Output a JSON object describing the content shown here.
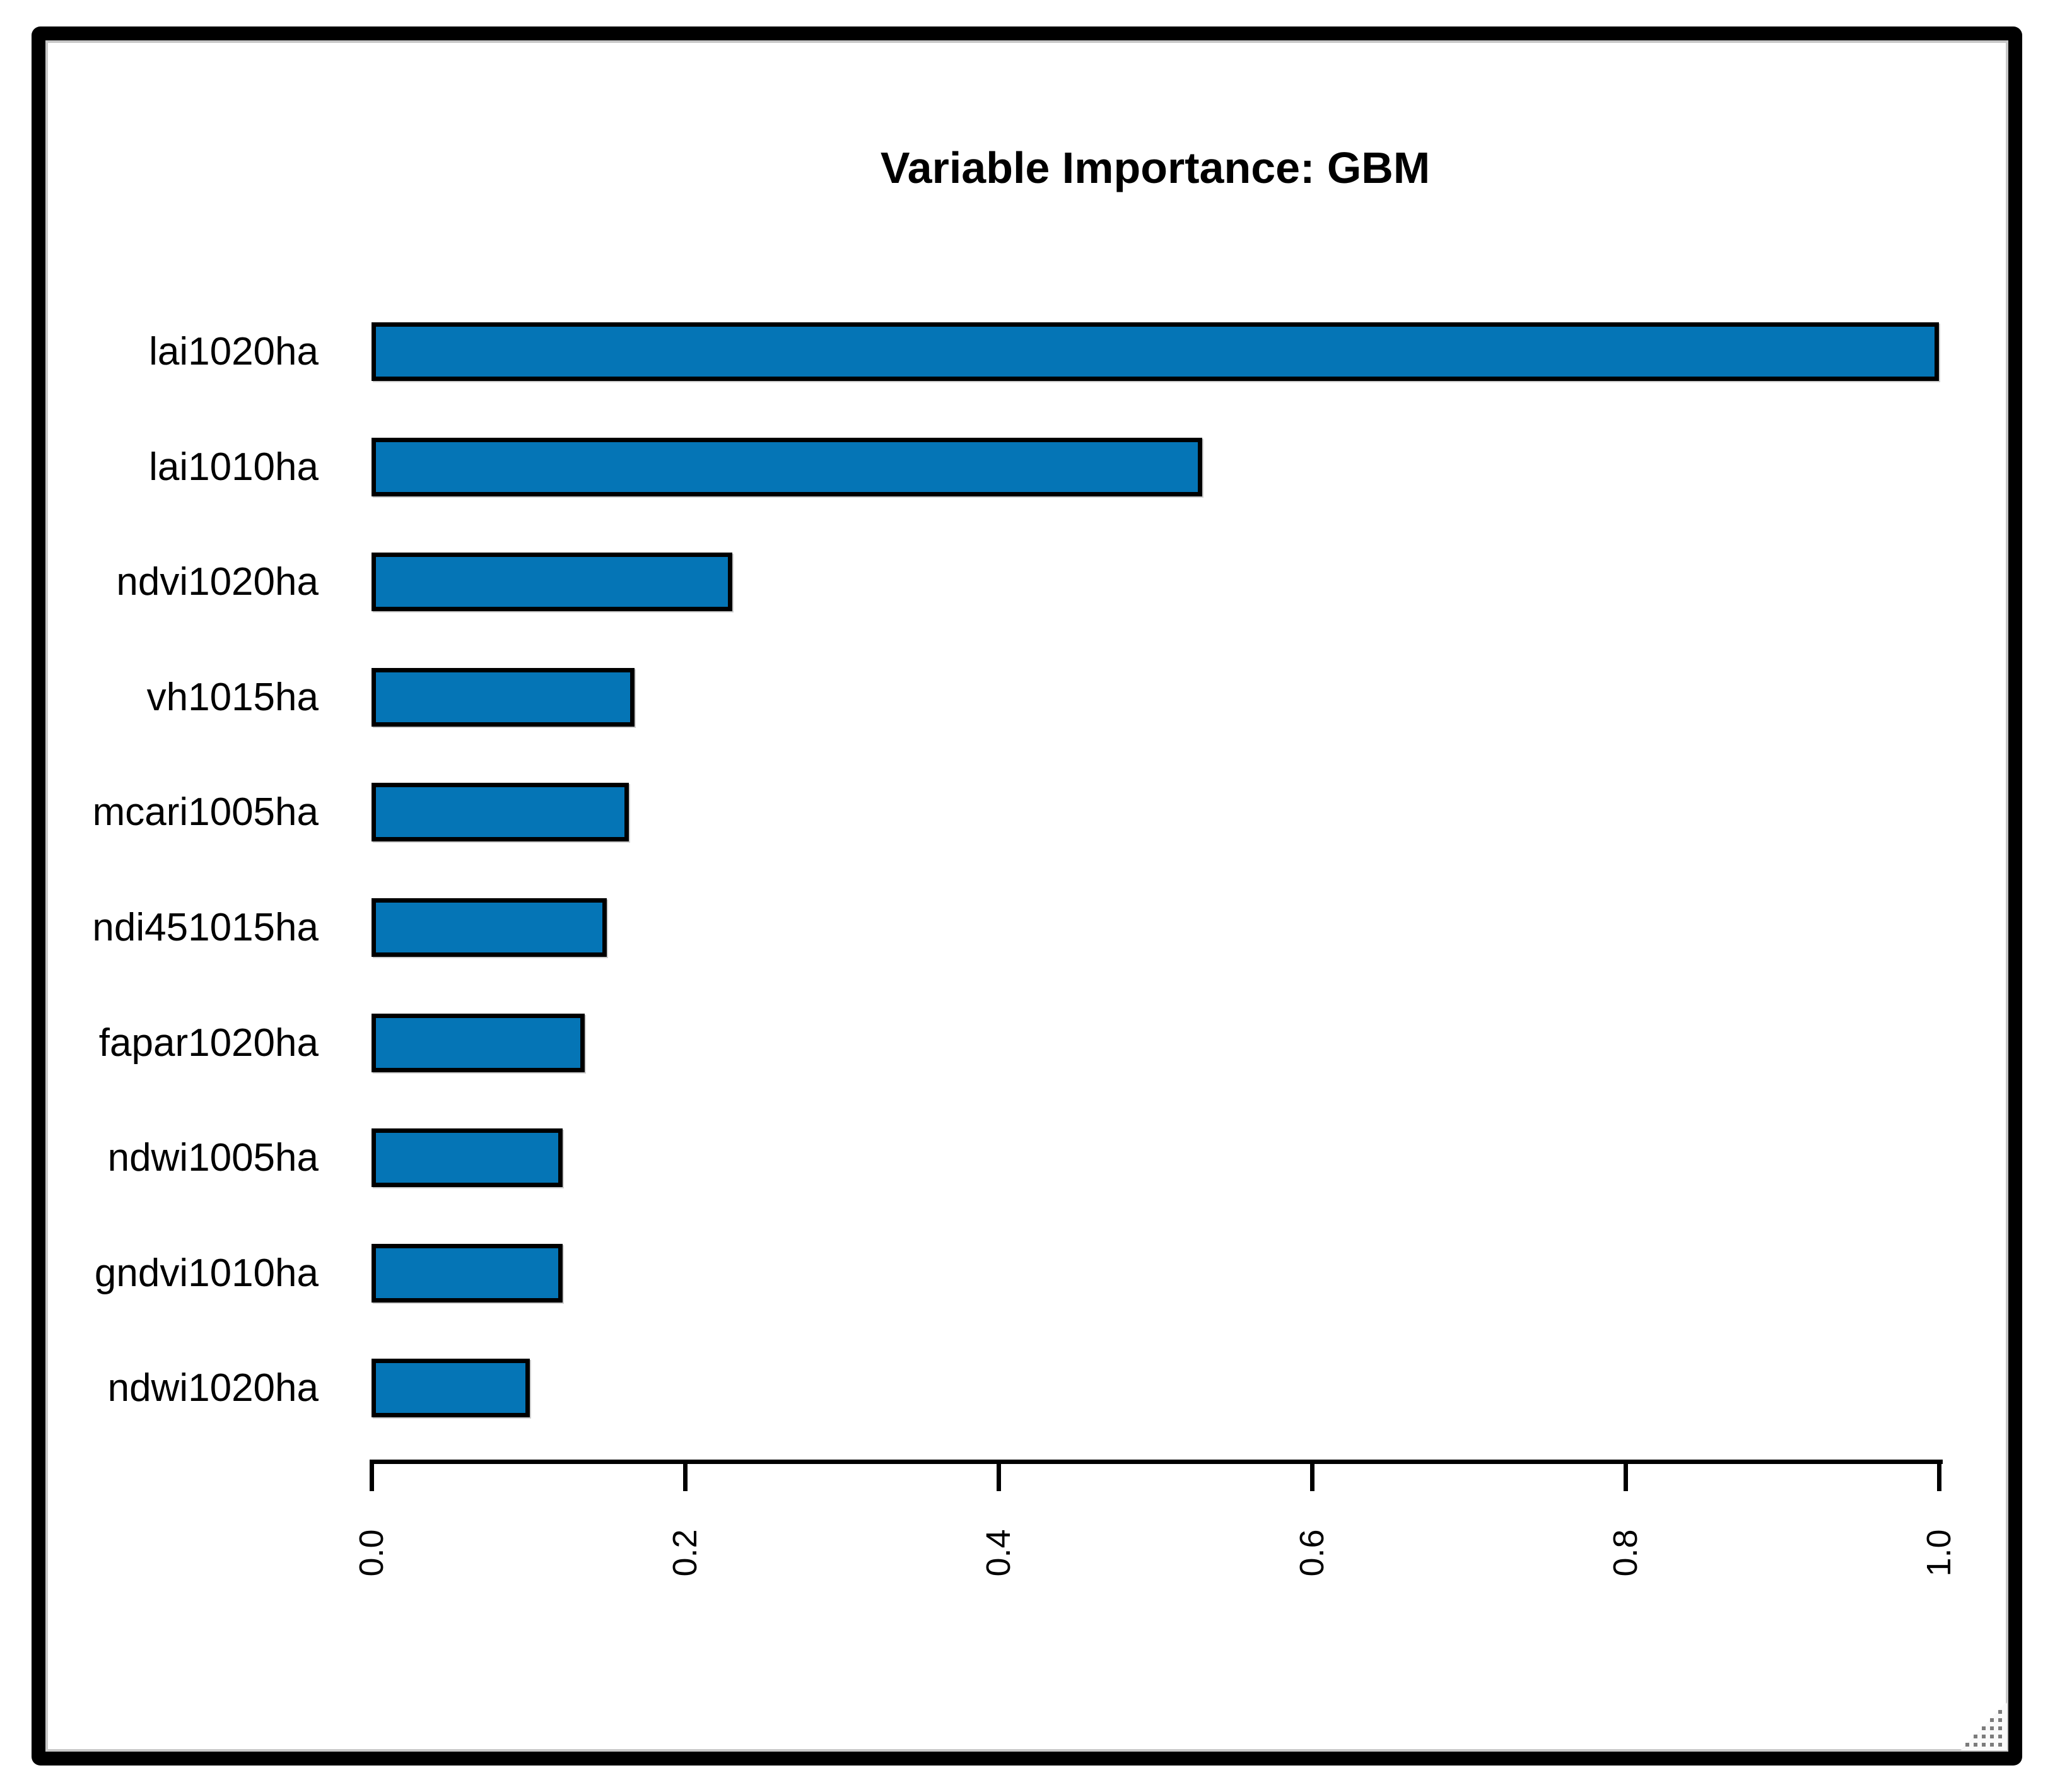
{
  "chart_data": {
    "type": "bar",
    "orientation": "horizontal",
    "title": "Variable Importance: GBM",
    "categories": [
      "lai1020ha",
      "lai1010ha",
      "ndvi1020ha",
      "vh1015ha",
      "mcari1005ha",
      "ndi451015ha",
      "fapar1020ha",
      "ndwi1005ha",
      "gndvi1010ha",
      "ndwi1020ha"
    ],
    "values": [
      1.0,
      0.53,
      0.23,
      0.168,
      0.164,
      0.15,
      0.136,
      0.122,
      0.122,
      0.101
    ],
    "xlabel": "",
    "ylabel": "",
    "xlim": [
      0.0,
      1.0
    ],
    "x_tick_labels": [
      "0.0",
      "0.2",
      "0.4",
      "0.6",
      "0.8",
      "1.0"
    ],
    "x_tick_values": [
      0.0,
      0.2,
      0.4,
      0.6,
      0.8,
      1.0
    ],
    "grid": false,
    "legend_position": "none",
    "bar_color": "#0575b6",
    "bar_border_color": "#000000",
    "frame_color": "#000000",
    "background_color": "#ffffff"
  },
  "decorations": {
    "resize_grip": "dotted-triangle-resize-grip"
  }
}
